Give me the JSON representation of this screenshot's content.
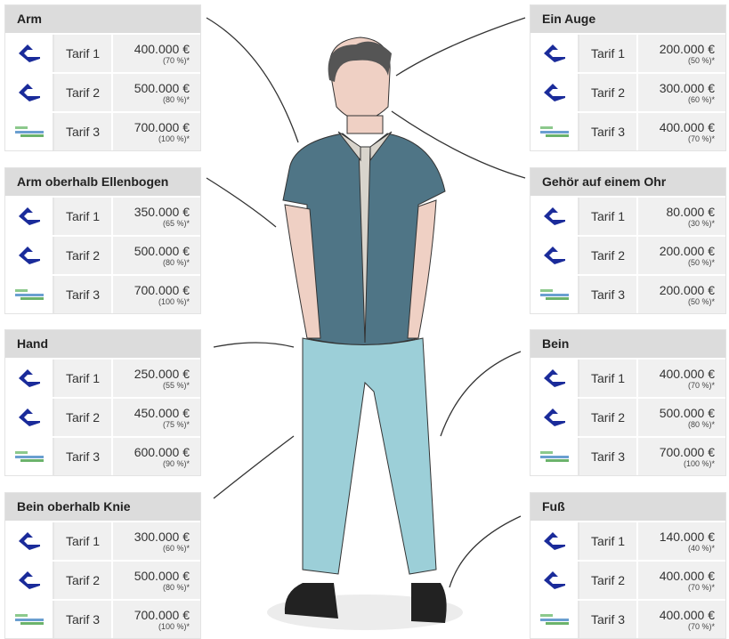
{
  "colors": {
    "logo_blue": "#1a2b9a",
    "logo_green": "#6bb36b",
    "header_bg": "#dcdcdc",
    "cell_bg": "#f0f0f0"
  },
  "icons": {
    "tarif_1": "diamond-logo-icon",
    "tarif_2": "diamond-logo-icon",
    "tarif_3": "striped-logo-icon"
  },
  "tables": [
    {
      "side": "left",
      "title": "Arm",
      "rows": [
        {
          "tarif": "Tarif 1",
          "amount": "400.000 €",
          "pct": "(70 %)*"
        },
        {
          "tarif": "Tarif 2",
          "amount": "500.000 €",
          "pct": "(80 %)*"
        },
        {
          "tarif": "Tarif 3",
          "amount": "700.000 €",
          "pct": "(100 %)*"
        }
      ]
    },
    {
      "side": "left",
      "title": "Arm oberhalb Ellenbogen",
      "rows": [
        {
          "tarif": "Tarif 1",
          "amount": "350.000 €",
          "pct": "(65 %)*"
        },
        {
          "tarif": "Tarif 2",
          "amount": "500.000 €",
          "pct": "(80 %)*"
        },
        {
          "tarif": "Tarif 3",
          "amount": "700.000 €",
          "pct": "(100 %)*"
        }
      ]
    },
    {
      "side": "left",
      "title": "Hand",
      "rows": [
        {
          "tarif": "Tarif 1",
          "amount": "250.000 €",
          "pct": "(55 %)*"
        },
        {
          "tarif": "Tarif 2",
          "amount": "450.000 €",
          "pct": "(75 %)*"
        },
        {
          "tarif": "Tarif 3",
          "amount": "600.000 €",
          "pct": "(90 %)*"
        }
      ]
    },
    {
      "side": "left",
      "title": "Bein oberhalb Knie",
      "rows": [
        {
          "tarif": "Tarif 1",
          "amount": "300.000 €",
          "pct": "(60 %)*"
        },
        {
          "tarif": "Tarif 2",
          "amount": "500.000 €",
          "pct": "(80 %)*"
        },
        {
          "tarif": "Tarif 3",
          "amount": "700.000 €",
          "pct": "(100 %)*"
        }
      ]
    },
    {
      "side": "right",
      "title": "Ein Auge",
      "rows": [
        {
          "tarif": "Tarif 1",
          "amount": "200.000 €",
          "pct": "(50 %)*"
        },
        {
          "tarif": "Tarif 2",
          "amount": "300.000 €",
          "pct": "(60 %)*"
        },
        {
          "tarif": "Tarif 3",
          "amount": "400.000 €",
          "pct": "(70 %)*"
        }
      ]
    },
    {
      "side": "right",
      "title": "Gehör auf einem Ohr",
      "rows": [
        {
          "tarif": "Tarif 1",
          "amount": "80.000 €",
          "pct": "(30 %)*"
        },
        {
          "tarif": "Tarif 2",
          "amount": "200.000 €",
          "pct": "(50 %)*"
        },
        {
          "tarif": "Tarif 3",
          "amount": "200.000 €",
          "pct": "(50 %)*"
        }
      ]
    },
    {
      "side": "right",
      "title": "Bein",
      "rows": [
        {
          "tarif": "Tarif 1",
          "amount": "400.000 €",
          "pct": "(70 %)*"
        },
        {
          "tarif": "Tarif 2",
          "amount": "500.000 €",
          "pct": "(80 %)*"
        },
        {
          "tarif": "Tarif 3",
          "amount": "700.000 €",
          "pct": "(100 %)*"
        }
      ]
    },
    {
      "side": "right",
      "title": "Fuß",
      "rows": [
        {
          "tarif": "Tarif 1",
          "amount": "140.000 €",
          "pct": "(40 %)*"
        },
        {
          "tarif": "Tarif 2",
          "amount": "400.000 €",
          "pct": "(70 %)*"
        },
        {
          "tarif": "Tarif 3",
          "amount": "400.000 €",
          "pct": "(70 %)*"
        }
      ]
    }
  ]
}
